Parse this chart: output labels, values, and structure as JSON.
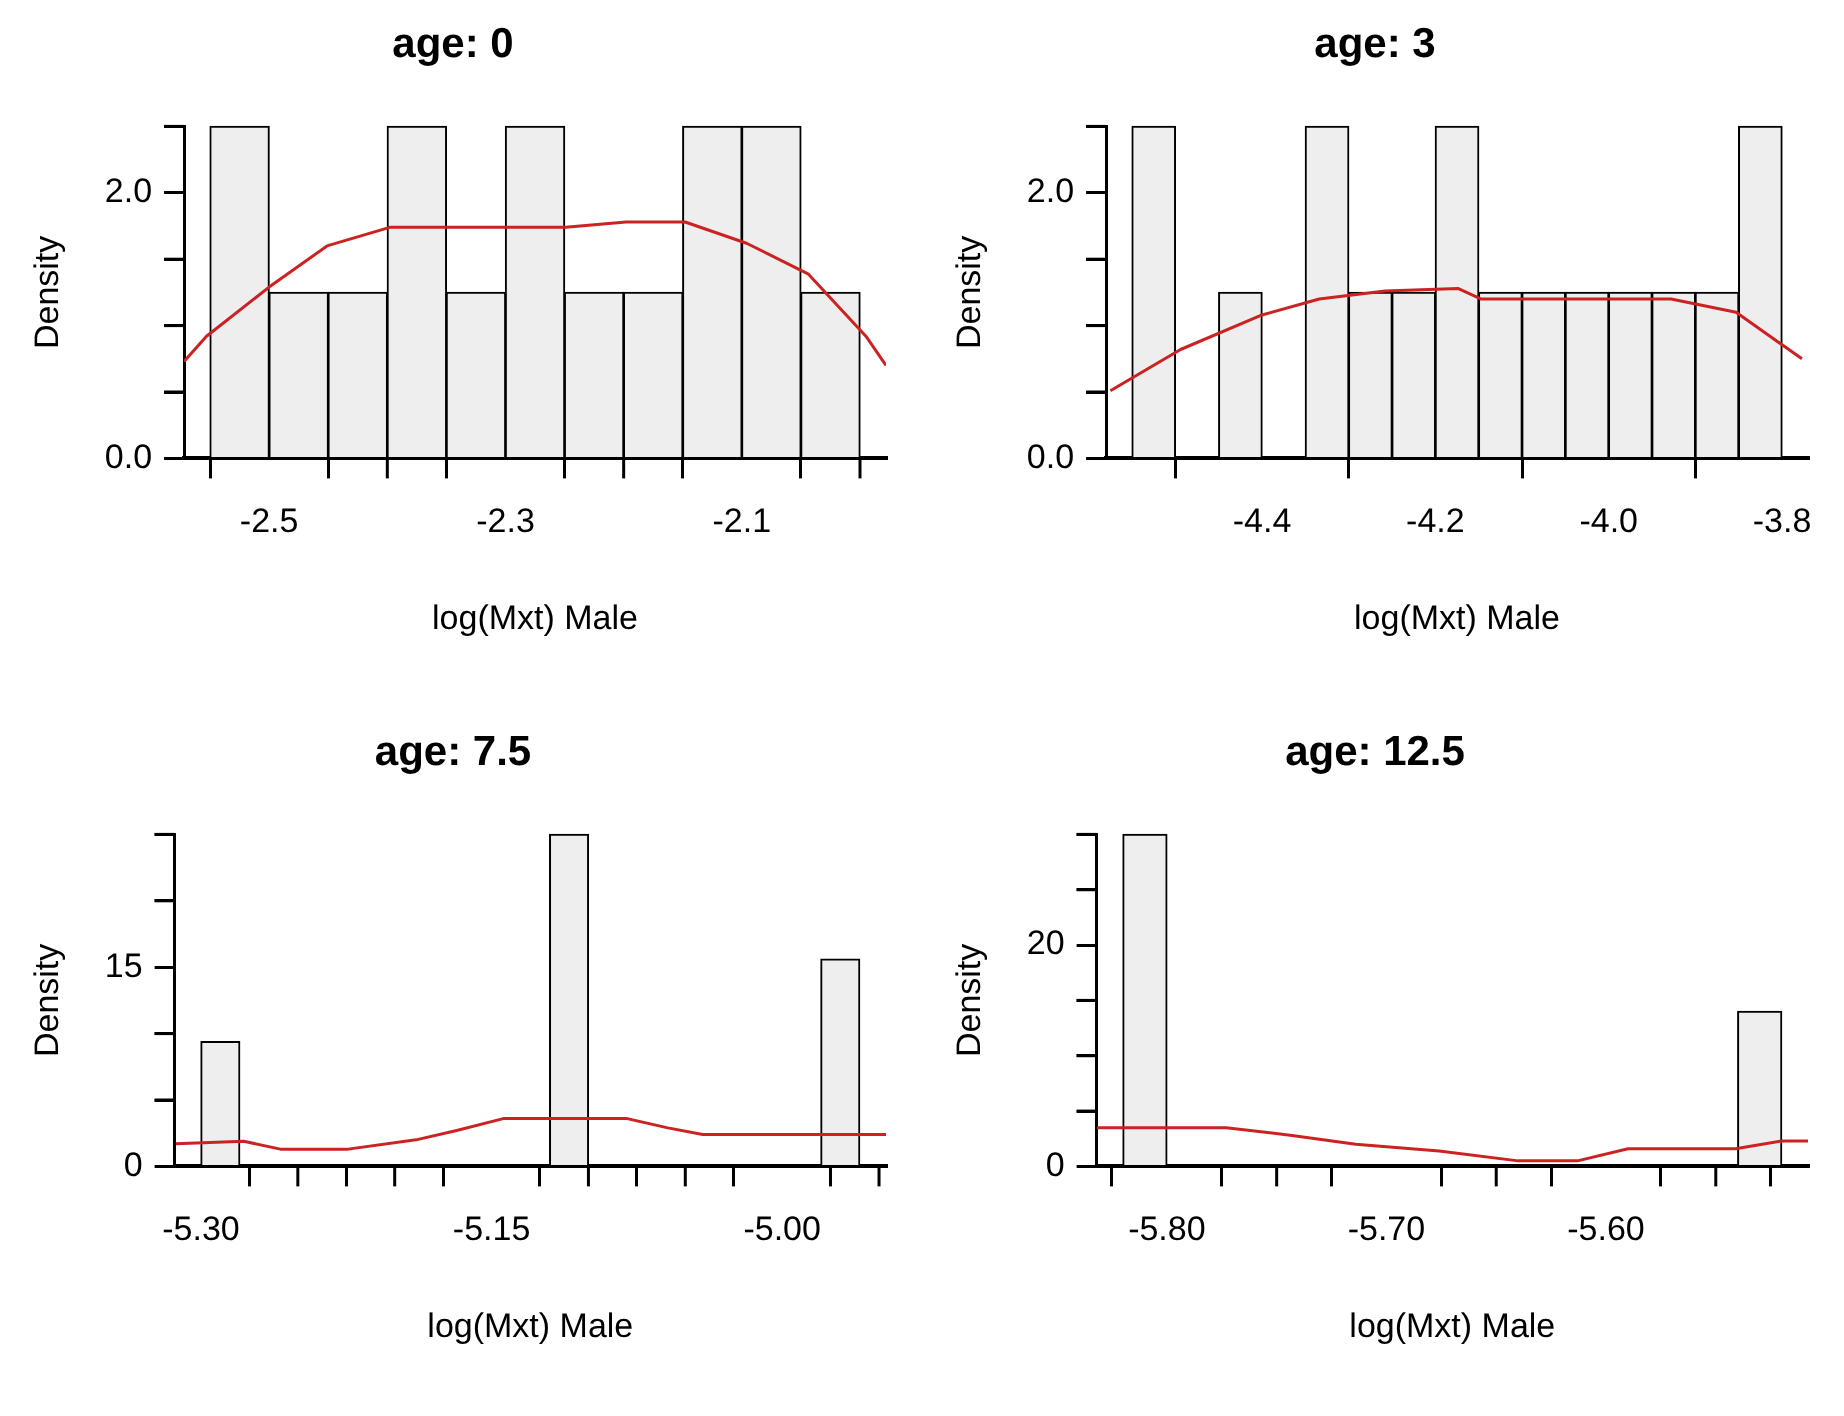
{
  "chart_data": [
    {
      "type": "histogram",
      "title": "age: 0",
      "xlabel": "log(Mxt) Male",
      "ylabel": "Density",
      "color": "#eeeeee",
      "bins": [
        -2.55,
        -2.5,
        -2.45,
        -2.4,
        -2.35,
        -2.3,
        -2.25,
        -2.2,
        -2.15,
        -2.1,
        -2.05,
        -2.0
      ],
      "values": [
        2.5,
        1.25,
        1.25,
        2.5,
        1.25,
        2.5,
        1.25,
        1.25,
        2.5,
        2.5,
        1.25
      ],
      "series": [
        {
          "type": "line",
          "color": "#cc2222",
          "x": [
            -2.572,
            -2.553,
            -2.5,
            -2.451,
            -2.398,
            -2.349,
            -2.249,
            -2.198,
            -2.148,
            -2.096,
            -2.044,
            -1.995,
            -1.978
          ],
          "values": [
            0.73,
            0.92,
            1.29,
            1.6,
            1.74,
            1.74,
            1.74,
            1.78,
            1.78,
            1.62,
            1.39,
            0.92,
            0.7
          ]
        }
      ],
      "xlim": [
        -2.572,
        -1.978
      ],
      "xticks": [
        -2.5,
        {
          "value": -2.4,
          "label": null
        },
        -2.3,
        {
          "value": -2.2,
          "label": null
        },
        -2.1,
        {
          "value": -2.0,
          "label": null
        }
      ],
      "ylim": [
        0,
        2.5
      ],
      "yticks": [
        {
          "value": 0,
          "label": "0.0"
        },
        {
          "value": 0.5,
          "label": null
        },
        {
          "value": 1,
          "label": null
        },
        {
          "value": 1.5,
          "label": null
        },
        {
          "value": 2,
          "label": "2.0"
        },
        {
          "value": 2.5,
          "label": null
        }
      ]
    },
    {
      "type": "histogram",
      "title": "age: 3",
      "xlabel": "log(Mxt) Male",
      "ylabel": "Density",
      "color": "#eeeeee",
      "bins": [
        -4.55,
        -4.5,
        -4.45,
        -4.4,
        -4.35,
        -4.3,
        -4.25,
        -4.2,
        -4.15,
        -4.1,
        -4.05,
        -4.0,
        -3.95,
        -3.9,
        -3.85,
        -3.8
      ],
      "values": [
        2.5,
        0,
        1.25,
        0,
        2.5,
        1.25,
        1.25,
        2.5,
        1.25,
        1.25,
        1.25,
        1.25,
        1.25,
        1.25,
        2.5
      ],
      "series": [
        {
          "type": "line",
          "color": "#cc2222",
          "x": [
            -4.575,
            -4.494,
            -4.4,
            -4.334,
            -4.258,
            -4.174,
            -4.147,
            -3.928,
            -3.853,
            -3.777
          ],
          "values": [
            0.51,
            0.82,
            1.08,
            1.2,
            1.26,
            1.28,
            1.2,
            1.2,
            1.1,
            0.75
          ]
        }
      ],
      "xlim": [
        -4.58,
        -3.77
      ],
      "xticks": [
        -4.4,
        -4.2,
        {
          "value": -4.0,
          "label": "-4.0"
        },
        -3.8
      ],
      "ylim": [
        0,
        2.5
      ],
      "yticks": [
        {
          "value": 0,
          "label": "0.0"
        },
        {
          "value": 0.5,
          "label": null
        },
        {
          "value": 1,
          "label": null
        },
        {
          "value": 1.5,
          "label": null
        },
        {
          "value": 2,
          "label": "2.0"
        },
        {
          "value": 2.5,
          "label": null
        }
      ]
    },
    {
      "type": "histogram",
      "title": "age: 7.5",
      "xlabel": "log(Mxt) Male",
      "ylabel": "Density",
      "color": "#eeeeee",
      "bins": [
        -5.3,
        -5.28,
        -5.26,
        -5.24,
        -5.22,
        -5.2,
        -5.18,
        -5.16,
        -5.14,
        -5.12,
        -5.1,
        -5.08,
        -5.06,
        -5.04,
        -5.02,
        -5.0,
        -4.98,
        -4.96
      ],
      "values": [
        9.4,
        0,
        0,
        0,
        0,
        0,
        0,
        0,
        0,
        25,
        0,
        0,
        0,
        0,
        0,
        0,
        15.6
      ],
      "series": [
        {
          "type": "line",
          "color": "#cc2222",
          "x": [
            -5.313,
            -5.278,
            -5.259,
            -5.224,
            -5.189,
            -5.168,
            -5.144,
            -5.08,
            -5.059,
            -5.041,
            -4.9464
          ],
          "values": [
            1.7,
            1.9,
            1.3,
            1.3,
            2.0,
            2.7,
            3.6,
            3.6,
            2.9,
            2.4,
            2.4
          ]
        }
      ],
      "xlim": [
        -5.3136,
        -4.9464
      ],
      "xticks": [
        {
          "value": -5.3,
          "label": "-5.30"
        },
        {
          "value": -5.25,
          "label": null
        },
        {
          "value": -5.2,
          "label": null
        },
        -5.15,
        {
          "value": -5.1,
          "label": null
        },
        {
          "value": -5.05,
          "label": null
        },
        {
          "value": -5.0,
          "label": "-5.00"
        },
        {
          "value": -4.95,
          "label": null
        }
      ],
      "ylim": [
        0,
        25
      ],
      "yticks": [
        0,
        {
          "value": 5,
          "label": null
        },
        {
          "value": 10,
          "label": null
        },
        15,
        {
          "value": 20,
          "label": null
        },
        {
          "value": 25,
          "label": null
        }
      ]
    },
    {
      "type": "histogram",
      "title": "age: 12.5",
      "xlabel": "log(Mxt) Male",
      "ylabel": "Density",
      "color": "#eeeeee",
      "bins": [
        -5.82,
        -5.8,
        -5.78,
        -5.76,
        -5.74,
        -5.72,
        -5.7,
        -5.68,
        -5.66,
        -5.64,
        -5.62,
        -5.6,
        -5.58,
        -5.56,
        -5.54,
        -5.52
      ],
      "values": [
        30,
        0,
        0,
        0,
        0,
        0,
        0,
        0,
        0,
        0,
        0,
        0,
        0,
        0,
        14
      ],
      "series": [
        {
          "type": "line",
          "color": "#cc2222",
          "x": [
            -5.832,
            -5.773,
            -5.743,
            -5.714,
            -5.676,
            -5.64,
            -5.613,
            -5.59,
            -5.541,
            -5.52,
            -5.508
          ],
          "values": [
            3.5,
            3.5,
            2.8,
            2.0,
            1.4,
            0.5,
            0.5,
            1.6,
            1.6,
            2.3,
            2.3
          ]
        }
      ],
      "xlim": [
        -5.832,
        -5.508
      ],
      "xticks": [
        {
          "value": -5.8,
          "label": "-5.80"
        },
        {
          "value": -5.75,
          "label": null
        },
        {
          "value": -5.7,
          "label": "-5.70"
        },
        {
          "value": -5.65,
          "label": null
        },
        {
          "value": -5.6,
          "label": "-5.60"
        },
        {
          "value": -5.55,
          "label": null
        }
      ],
      "ylim": [
        0,
        30
      ],
      "yticks": [
        0,
        {
          "value": 5,
          "label": null
        },
        {
          "value": 10,
          "label": null
        },
        {
          "value": 15,
          "label": null
        },
        20,
        {
          "value": 25,
          "label": null
        },
        {
          "value": 30,
          "label": null
        }
      ]
    }
  ]
}
